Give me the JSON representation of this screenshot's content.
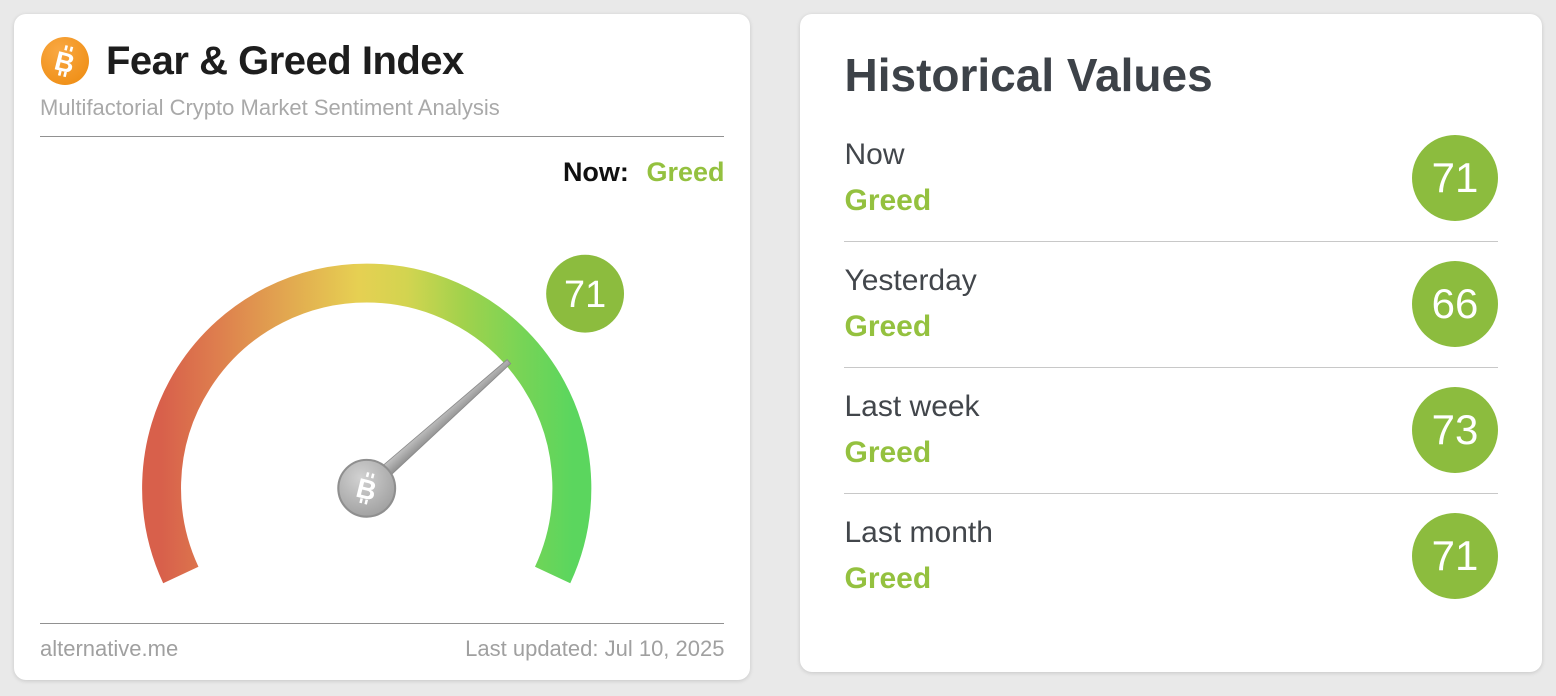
{
  "gauge_card": {
    "title": "Fear & Greed Index",
    "subtitle": "Multifactorial Crypto Market Sentiment Analysis",
    "now_label": "Now:",
    "now_value": "Greed",
    "footer_left": "alternative.me",
    "footer_right": "Last updated: Jul 10, 2025"
  },
  "historical_card": {
    "title": "Historical Values",
    "rows": [
      {
        "label": "Now",
        "classification": "Greed",
        "value": 71
      },
      {
        "label": "Yesterday",
        "classification": "Greed",
        "value": 66
      },
      {
        "label": "Last week",
        "classification": "Greed",
        "value": 73
      },
      {
        "label": "Last month",
        "classification": "Greed",
        "value": 71
      }
    ]
  },
  "icons": {
    "bitcoin_icon": "bitcoin-logo",
    "gauge_needle": "needle-pointer"
  },
  "colors": {
    "greed_green_text": "#94c13f",
    "badge_green": "#8cbc3e",
    "bitcoin_orange": "#f7931a",
    "gauge_gradient": [
      "#d8604b",
      "#e2a850",
      "#e6d052",
      "#aad14d",
      "#5bd65e"
    ]
  },
  "chart_data": {
    "type": "gauge",
    "title": "Fear & Greed Index",
    "value": 71,
    "min": 0,
    "max": 100,
    "classification": "Greed",
    "start_angle_deg": 205,
    "sweep_deg": 230,
    "historical": [
      {
        "label": "Now",
        "value": 71,
        "classification": "Greed"
      },
      {
        "label": "Yesterday",
        "value": 66,
        "classification": "Greed"
      },
      {
        "label": "Last week",
        "value": 73,
        "classification": "Greed"
      },
      {
        "label": "Last month",
        "value": 71,
        "classification": "Greed"
      }
    ]
  }
}
